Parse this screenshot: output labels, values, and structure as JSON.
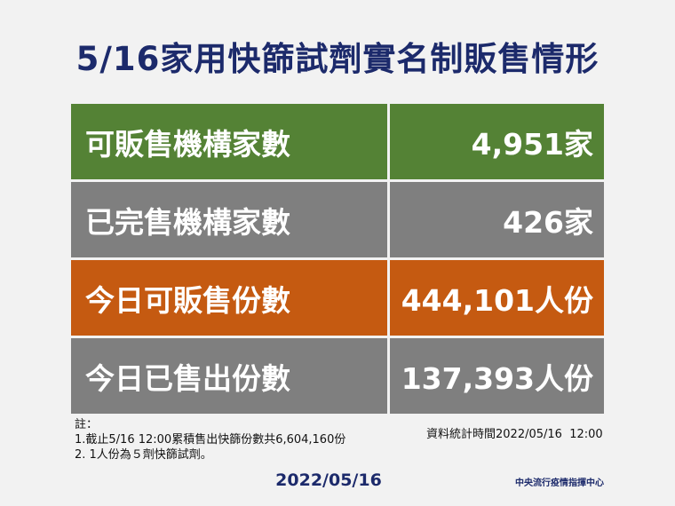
{
  "header": {
    "title": "5/16家用快篩試劑實名制販售情形"
  },
  "table": {
    "rows": [
      [
        "可販售機構家數",
        "4,951家"
      ],
      [
        "已完售機構家數",
        "426家"
      ],
      [
        "今日可販售份數",
        "444,101人份"
      ],
      [
        "今日已售出份數",
        "137,393人份"
      ]
    ]
  },
  "notes": {
    "heading": "註：",
    "items": [
      "1.截止5/16 12:00累積售出快篩份數共6,604,160份",
      "2. 1人份為５劑快篩試劑。"
    ]
  },
  "timestamp": "資料統計時間2022/05/16  12:00",
  "footer": {
    "date": "2022/05/16",
    "organization": "中央流行疫情指揮中心"
  }
}
